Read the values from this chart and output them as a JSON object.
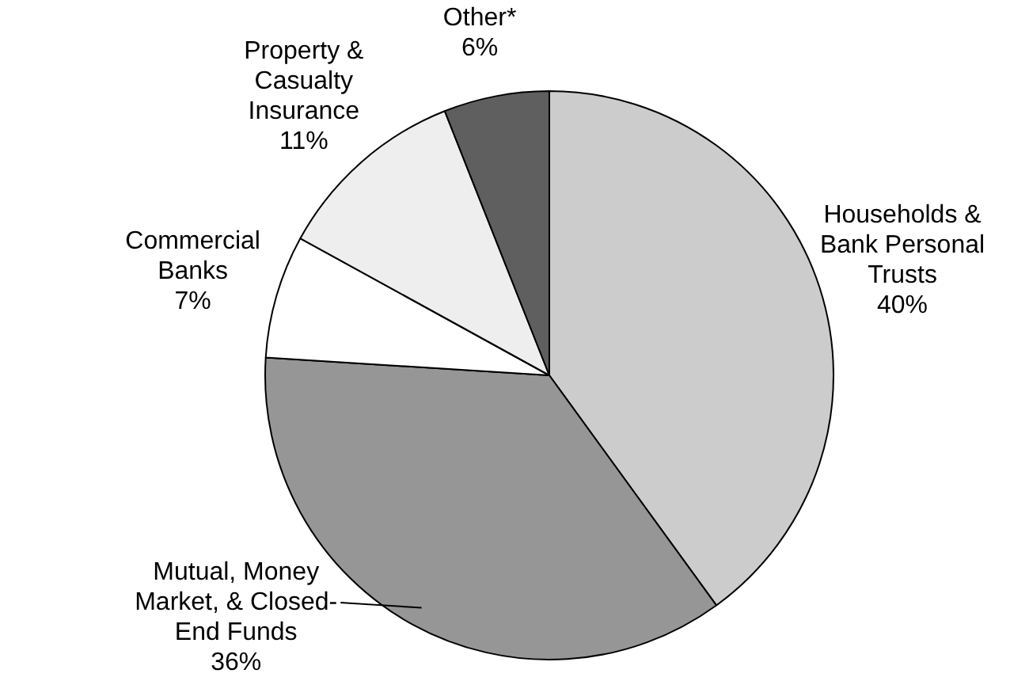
{
  "chart_data": {
    "type": "pie",
    "categories": [
      "Households &\nBank Personal\nTrusts",
      "Mutual, Money\nMarket, & Closed-\nEnd Funds",
      "Commercial\nBanks",
      "Property &\nCasualty\nInsurance",
      "Other*"
    ],
    "values": [
      40,
      36,
      7,
      11,
      6
    ],
    "value_labels": [
      "40%",
      "36%",
      "7%",
      "11%",
      "6%"
    ],
    "colors": [
      "#cccccc",
      "#969696",
      "#ffffff",
      "#eeeeee",
      "#5f5f5f"
    ]
  }
}
